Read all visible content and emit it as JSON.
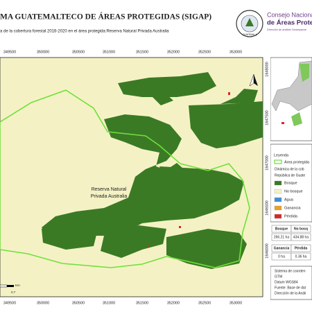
{
  "header": {
    "title": "MA GUATEMALTECO DE ÁREAS PROTEGIDAS  (SIGAP)",
    "subtitle": "a de la cobertura forestal 2016-2020 en el área protegida:Reserva Natural Privada Australia"
  },
  "logo": {
    "seal_text": "GUATEMALA",
    "line1": "Consejo Nacional",
    "line2": "de Áreas Protegi",
    "line3": "Dirección de análisis Geoespacial"
  },
  "map": {
    "x_ticks": [
      "349500",
      "350000",
      "350500",
      "351000",
      "351500",
      "352000",
      "352500",
      "353000"
    ],
    "y_ticks": [
      "1648000",
      "1647500",
      "1647000",
      "1646500",
      "1646000"
    ],
    "area_label": [
      "Reserva Natural",
      "Privada Australia"
    ],
    "scale_unit": "Km",
    "scale_value": "0.7"
  },
  "legend": {
    "title": "Leyenda",
    "area_item": "Área protegida",
    "dynamics_title": [
      "Dinámica de la cob",
      "República de Guate"
    ],
    "items": [
      {
        "label": "Bosque",
        "color": "#3b7a25"
      },
      {
        "label": "No bosque",
        "color": "#f4f2c4"
      },
      {
        "label": "Agua",
        "color": "#3f8fd8"
      },
      {
        "label": "Ganancia",
        "color": "#e8a030"
      },
      {
        "label": "Pérdida",
        "color": "#d42a2a"
      }
    ]
  },
  "table": {
    "rows": [
      [
        "Bosque",
        "No bosq"
      ],
      [
        "266.21 ha",
        "434.88 ha"
      ],
      [
        "Ganancia",
        "Pérdida"
      ],
      [
        "0 ha",
        "0.36 ha"
      ]
    ]
  },
  "notes": [
    "Sistema de coorden",
    "GTM",
    "Datum WGS84",
    "Fuente: Base de dat",
    "Dirección de la Análi"
  ]
}
